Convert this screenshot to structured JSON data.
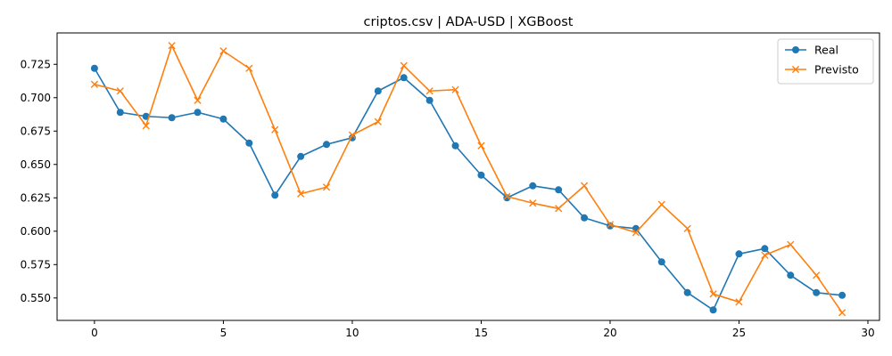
{
  "chart_data": {
    "type": "line",
    "title": "criptos.csv | ADA-USD | XGBoost",
    "xlabel": "",
    "ylabel": "",
    "x": [
      0,
      1,
      2,
      3,
      4,
      5,
      6,
      7,
      8,
      9,
      10,
      11,
      12,
      13,
      14,
      15,
      16,
      17,
      18,
      19,
      20,
      21,
      22,
      23,
      24,
      25,
      26,
      27,
      28,
      29
    ],
    "xlim": [
      -1.45,
      30.45
    ],
    "ylim": [
      0.5332,
      0.7485
    ],
    "xticks": [
      0,
      5,
      10,
      15,
      20,
      25,
      30
    ],
    "xtick_labels": [
      "0",
      "5",
      "10",
      "15",
      "20",
      "25",
      "30"
    ],
    "yticks": [
      0.55,
      0.575,
      0.6,
      0.625,
      0.65,
      0.675,
      0.7,
      0.725
    ],
    "ytick_labels": [
      "0.550",
      "0.575",
      "0.600",
      "0.625",
      "0.650",
      "0.675",
      "0.700",
      "0.725"
    ],
    "grid": false,
    "legend_position": "top-right",
    "series": [
      {
        "name": "Real",
        "color": "#1f77b4",
        "marker": "circle",
        "values": [
          0.722,
          0.689,
          0.686,
          0.685,
          0.689,
          0.684,
          0.666,
          0.627,
          0.656,
          0.665,
          0.67,
          0.705,
          0.715,
          0.698,
          0.664,
          0.642,
          0.625,
          0.634,
          0.631,
          0.61,
          0.604,
          0.602,
          0.577,
          0.554,
          0.541,
          0.583,
          0.587,
          0.567,
          0.554,
          0.552
        ]
      },
      {
        "name": "Previsto",
        "color": "#ff7f0e",
        "marker": "x",
        "values": [
          0.71,
          0.705,
          0.679,
          0.739,
          0.698,
          0.735,
          0.722,
          0.676,
          0.628,
          0.633,
          0.672,
          0.682,
          0.724,
          0.705,
          0.706,
          0.664,
          0.626,
          0.621,
          0.617,
          0.634,
          0.605,
          0.599,
          0.62,
          0.602,
          0.553,
          0.547,
          0.582,
          0.59,
          0.567,
          0.539
        ]
      }
    ]
  }
}
